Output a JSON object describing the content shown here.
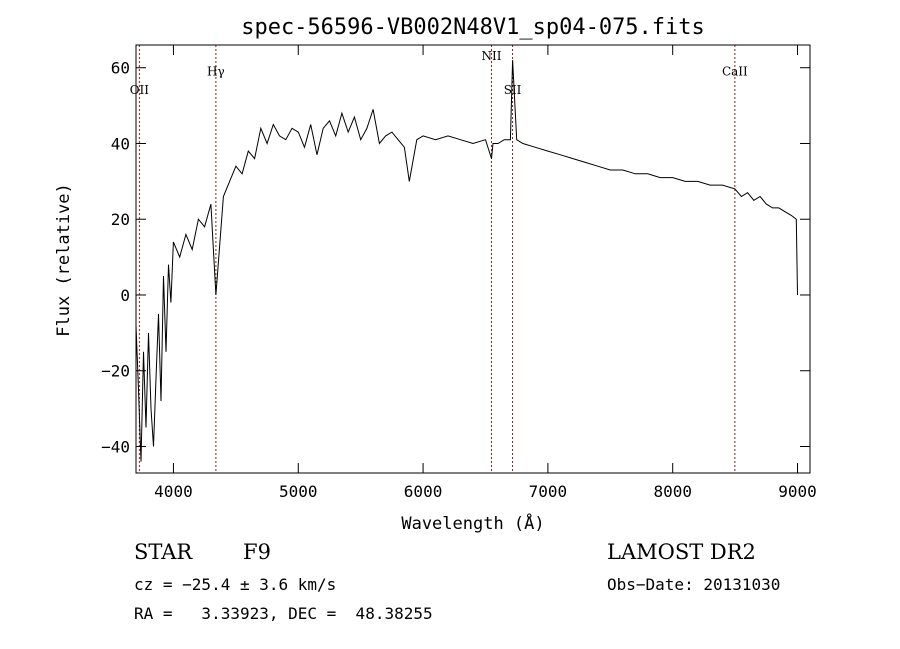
{
  "chart_data": {
    "type": "line",
    "title": "spec-56596-VB002N48V1_sp04-075.fits",
    "xlabel": "Wavelength (Å)",
    "ylabel": "Flux (relative)",
    "xlim": [
      3700,
      9100
    ],
    "ylim": [
      -47,
      66
    ],
    "xticks": [
      {
        "value": 4000,
        "label": "4000"
      },
      {
        "value": 5000,
        "label": "5000"
      },
      {
        "value": 6000,
        "label": "6000"
      },
      {
        "value": 7000,
        "label": "7000"
      },
      {
        "value": 8000,
        "label": "8000"
      },
      {
        "value": 9000,
        "label": "9000"
      }
    ],
    "yticks": [
      {
        "value": -40,
        "label": "−40"
      },
      {
        "value": -20,
        "label": "−20"
      },
      {
        "value": 0,
        "label": "0"
      },
      {
        "value": 20,
        "label": "20"
      },
      {
        "value": 40,
        "label": "40"
      },
      {
        "value": 60,
        "label": "60"
      }
    ],
    "lines": [
      {
        "label": "OII",
        "x": 3727,
        "label_y": 53
      },
      {
        "label": "Hγ",
        "x": 4340,
        "label_y": 58
      },
      {
        "label": "NII",
        "x": 6548,
        "label_y": 62
      },
      {
        "label": "SII",
        "x": 6717,
        "label_y": 53
      },
      {
        "label": "CaII",
        "x": 8498,
        "label_y": 58
      }
    ],
    "line_color": "#8b1a1a",
    "series_color": "#000000",
    "grid": false,
    "series": [
      {
        "x": [
          3700,
          3720,
          3740,
          3760,
          3780,
          3800,
          3820,
          3840,
          3860,
          3880,
          3900,
          3920,
          3940,
          3960,
          3980,
          4000,
          4050,
          4100,
          4150,
          4200,
          4250,
          4300,
          4340,
          4400,
          4450,
          4500,
          4550,
          4600,
          4650,
          4700,
          4750,
          4800,
          4850,
          4900,
          4950,
          5000,
          5050,
          5100,
          5150,
          5200,
          5250,
          5300,
          5350,
          5400,
          5450,
          5500,
          5550,
          5600,
          5650,
          5700,
          5750,
          5800,
          5850,
          5890,
          5950,
          6000,
          6100,
          6200,
          6300,
          6400,
          6500,
          6548,
          6560,
          6600,
          6650,
          6700,
          6717,
          6750,
          6800,
          6900,
          7000,
          7100,
          7200,
          7300,
          7400,
          7500,
          7600,
          7700,
          7800,
          7900,
          8000,
          8100,
          8200,
          8300,
          8400,
          8498,
          8550,
          8600,
          8650,
          8700,
          8750,
          8800,
          8850,
          8900,
          8950,
          8990,
          9000
        ],
        "y": [
          -8,
          -25,
          -44,
          -15,
          -35,
          -10,
          -30,
          -40,
          -22,
          -5,
          -28,
          5,
          -15,
          8,
          -2,
          14,
          10,
          16,
          12,
          20,
          18,
          24,
          0,
          26,
          30,
          34,
          32,
          38,
          36,
          44,
          40,
          45,
          42,
          41,
          44,
          43,
          39,
          45,
          37,
          44,
          46,
          42,
          48,
          43,
          47,
          41,
          44,
          49,
          40,
          42,
          43,
          41,
          39,
          30,
          41,
          42,
          41,
          42,
          41,
          40,
          41,
          36,
          40,
          40,
          41,
          41,
          62,
          41,
          40,
          39,
          38,
          37,
          36,
          35,
          34,
          33,
          33,
          32,
          32,
          31,
          31,
          30,
          30,
          29,
          29,
          28,
          26,
          27,
          25,
          26,
          24,
          23,
          23,
          22,
          21,
          20,
          0
        ]
      }
    ]
  },
  "info": {
    "object_type": "STAR",
    "subclass": "F9",
    "survey": "LAMOST DR2",
    "redshift": "cz = −25.4 ± 3.6 km/s",
    "obs_date": "Obs−Date: 20131030",
    "coords": "RA =   3.33923, DEC =  48.38255"
  }
}
